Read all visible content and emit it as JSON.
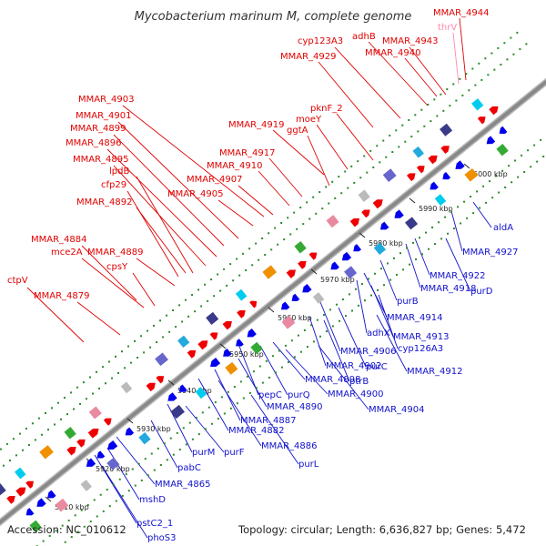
{
  "title": "Mycobacterium marinum M, complete genome",
  "footer": {
    "accession": "Accession: NC_010612",
    "summary": "Topology: circular; Length: 6,636,827 bp; Genes: 5,472"
  },
  "colors": {
    "forward_label": "#e00000",
    "reverse_label": "#1010cc",
    "rna_label": "#ff88aa",
    "backbone": "#888888",
    "forward_feature": "#ee0000",
    "reverse_feature": "#0000ee"
  },
  "ticks": [
    "5910 kbp",
    "5920 kbp",
    "5930 kbp",
    "5940 kbp",
    "5950 kbp",
    "5960 kbp",
    "5970 kbp",
    "5980 kbp",
    "5990 kbp",
    "6000 kbp"
  ],
  "top_labels": [
    "MMAR_4944",
    "thrV",
    "adhB",
    "MMAR_4943",
    "cyp123A3",
    "MMAR_4940",
    "MMAR_4929",
    "pknF_2",
    "moeY",
    "MMAR_4919",
    "ggtA",
    "MMAR_4903",
    "MMAR_4901",
    "MMAR_4899",
    "MMAR_4896",
    "MMAR_4895",
    "lpdB",
    "cfp29",
    "MMAR_4892",
    "MMAR_4917",
    "MMAR_4910",
    "MMAR_4907",
    "MMAR_4905",
    "MMAR_4884",
    "mce2A",
    "MMAR_4889",
    "cpsY",
    "ctpV",
    "MMAR_4879"
  ],
  "bottom_labels": [
    "aldA",
    "MMAR_4927",
    "MMAR_4922",
    "MMAR_4918",
    "purD",
    "purB",
    "MMAR_4914",
    "adhX",
    "MMAR_4913",
    "cyp126A3",
    "MMAR_4906",
    "purC",
    "MMAR_4912",
    "MMAR_4902",
    "ptrB",
    "pepC",
    "purQ",
    "MMAR_4898",
    "MMAR_4900",
    "MMAR_4890",
    "MMAR_4904",
    "MMAR_4887",
    "MMAR_4882",
    "MMAR_4886",
    "purL",
    "purM",
    "purF",
    "pabC",
    "MMAR_4865",
    "mshD",
    "pstC2_1",
    "phoS3"
  ]
}
